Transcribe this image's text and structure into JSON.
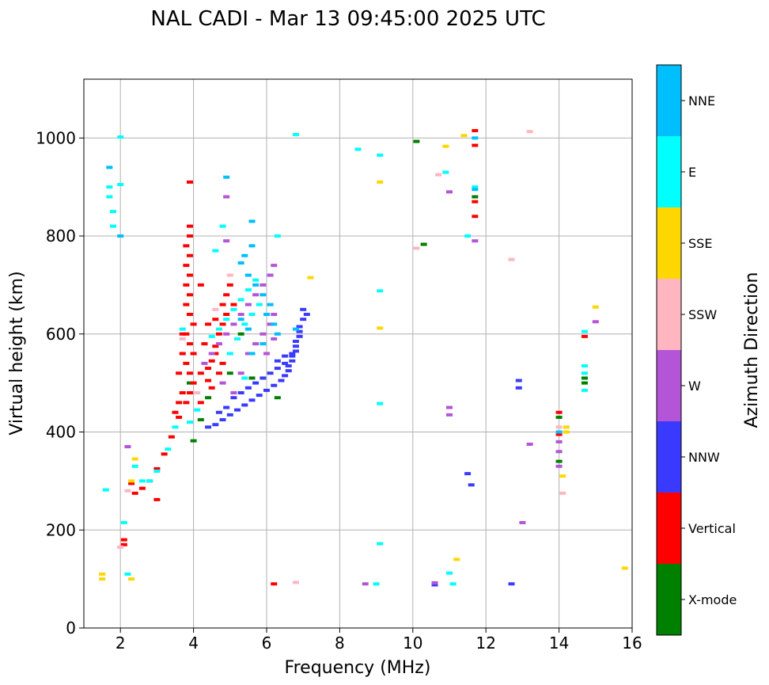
{
  "chart_data": {
    "type": "scatter",
    "title": "NAL CADI - Mar 13 09:45:00 2025 UTC",
    "xlabel": "Frequency (MHz)",
    "ylabel": "Virtual height (km)",
    "xlim": [
      1.0,
      16.0
    ],
    "ylim": [
      0,
      1120
    ],
    "xticks": [
      2,
      4,
      6,
      8,
      10,
      12,
      14,
      16
    ],
    "yticks": [
      0,
      200,
      400,
      600,
      800,
      1000
    ],
    "grid": true,
    "colorbar": {
      "title": "Azimuth Direction",
      "categories": [
        "X-mode",
        "Vertical",
        "NNW",
        "W",
        "SSW",
        "SSE",
        "E",
        "NNE"
      ],
      "colors": [
        "#008000",
        "#ff0000",
        "#3a3aff",
        "#b455d8",
        "#ffb6c1",
        "#ffd700",
        "#00ffff",
        "#00bfff"
      ]
    },
    "series": [
      {
        "name": "X-mode",
        "points": [
          [
            10.1,
            993
          ],
          [
            10.3,
            783
          ],
          [
            11.7,
            880
          ],
          [
            14.0,
            430
          ],
          [
            14.0,
            340
          ],
          [
            14.7,
            510
          ],
          [
            14.7,
            500
          ],
          [
            4.2,
            425
          ],
          [
            4.4,
            470
          ],
          [
            5.0,
            520
          ],
          [
            5.6,
            510
          ],
          [
            6.3,
            470
          ],
          [
            4.0,
            382
          ],
          [
            5.3,
            600
          ],
          [
            3.9,
            500
          ]
        ]
      },
      {
        "name": "Vertical",
        "points": [
          [
            2.1,
            180
          ],
          [
            2.1,
            170
          ],
          [
            2.4,
            275
          ],
          [
            2.6,
            285
          ],
          [
            2.8,
            300
          ],
          [
            3.0,
            325
          ],
          [
            3.2,
            355
          ],
          [
            3.4,
            390
          ],
          [
            3.6,
            430
          ],
          [
            3.8,
            460
          ],
          [
            3.9,
            480
          ],
          [
            4.0,
            500
          ],
          [
            3.9,
            520
          ],
          [
            3.8,
            540
          ],
          [
            4.0,
            560
          ],
          [
            3.9,
            580
          ],
          [
            3.8,
            600
          ],
          [
            4.0,
            620
          ],
          [
            3.9,
            640
          ],
          [
            3.8,
            660
          ],
          [
            3.9,
            680
          ],
          [
            3.8,
            700
          ],
          [
            3.9,
            720
          ],
          [
            3.8,
            740
          ],
          [
            3.9,
            760
          ],
          [
            3.8,
            780
          ],
          [
            3.9,
            800
          ],
          [
            3.9,
            820
          ],
          [
            3.9,
            910
          ],
          [
            4.2,
            520
          ],
          [
            4.4,
            530
          ],
          [
            4.5,
            545
          ],
          [
            4.6,
            560
          ],
          [
            4.4,
            505
          ],
          [
            4.5,
            490
          ],
          [
            4.6,
            575
          ],
          [
            4.7,
            600
          ],
          [
            4.8,
            620
          ],
          [
            4.9,
            640
          ],
          [
            4.8,
            660
          ],
          [
            4.9,
            680
          ],
          [
            5.0,
            700
          ],
          [
            4.7,
            520
          ],
          [
            4.8,
            540
          ],
          [
            3.6,
            460
          ],
          [
            3.5,
            440
          ],
          [
            3.7,
            480
          ],
          [
            3.6,
            520
          ],
          [
            3.7,
            560
          ],
          [
            3.7,
            600
          ],
          [
            4.2,
            460
          ],
          [
            4.4,
            620
          ],
          [
            6.2,
            90
          ],
          [
            11.7,
            1015
          ],
          [
            11.7,
            985
          ],
          [
            11.7,
            870
          ],
          [
            11.7,
            840
          ],
          [
            14.0,
            440
          ],
          [
            14.0,
            395
          ],
          [
            14.7,
            595
          ],
          [
            3.0,
            262
          ],
          [
            2.3,
            295
          ],
          [
            4.3,
            580
          ],
          [
            4.6,
            630
          ],
          [
            5.1,
            660
          ],
          [
            4.2,
            700
          ]
        ]
      },
      {
        "name": "NNW",
        "points": [
          [
            4.4,
            410
          ],
          [
            4.6,
            415
          ],
          [
            4.8,
            425
          ],
          [
            5.0,
            435
          ],
          [
            5.2,
            445
          ],
          [
            5.4,
            455
          ],
          [
            5.6,
            465
          ],
          [
            5.8,
            475
          ],
          [
            6.0,
            485
          ],
          [
            6.2,
            495
          ],
          [
            6.4,
            505
          ],
          [
            6.5,
            515
          ],
          [
            6.6,
            525
          ],
          [
            6.6,
            535
          ],
          [
            6.7,
            545
          ],
          [
            6.7,
            555
          ],
          [
            6.8,
            565
          ],
          [
            6.8,
            575
          ],
          [
            6.8,
            585
          ],
          [
            6.9,
            595
          ],
          [
            6.9,
            605
          ],
          [
            6.9,
            615
          ],
          [
            7.0,
            630
          ],
          [
            7.0,
            650
          ],
          [
            7.1,
            640
          ],
          [
            5.5,
            490
          ],
          [
            5.7,
            500
          ],
          [
            5.9,
            510
          ],
          [
            6.1,
            520
          ],
          [
            6.3,
            530
          ],
          [
            6.5,
            540
          ],
          [
            6.7,
            560
          ],
          [
            5.3,
            480
          ],
          [
            5.1,
            470
          ],
          [
            4.7,
            440
          ],
          [
            4.9,
            450
          ],
          [
            12.9,
            505
          ],
          [
            12.9,
            490
          ],
          [
            12.7,
            90
          ],
          [
            11.5,
            315
          ],
          [
            11.6,
            292
          ],
          [
            10.6,
            92
          ],
          [
            10.6,
            88
          ],
          [
            6.5,
            555
          ],
          [
            6.3,
            545
          ]
        ]
      },
      {
        "name": "W",
        "points": [
          [
            2.2,
            370
          ],
          [
            4.3,
            540
          ],
          [
            4.5,
            560
          ],
          [
            4.7,
            580
          ],
          [
            4.9,
            600
          ],
          [
            5.1,
            620
          ],
          [
            5.3,
            640
          ],
          [
            5.5,
            660
          ],
          [
            5.7,
            680
          ],
          [
            5.9,
            700
          ],
          [
            6.1,
            720
          ],
          [
            6.2,
            740
          ],
          [
            5.1,
            480
          ],
          [
            5.3,
            520
          ],
          [
            5.5,
            560
          ],
          [
            5.7,
            580
          ],
          [
            5.9,
            600
          ],
          [
            6.1,
            620
          ],
          [
            6.2,
            640
          ],
          [
            4.9,
            790
          ],
          [
            4.9,
            880
          ],
          [
            11.0,
            890
          ],
          [
            11.0,
            450
          ],
          [
            11.0,
            435
          ],
          [
            13.2,
            375
          ],
          [
            13.0,
            215
          ],
          [
            14.0,
            380
          ],
          [
            14.0,
            360
          ],
          [
            14.0,
            330
          ],
          [
            8.7,
            90
          ],
          [
            10.6,
            92
          ],
          [
            11.7,
            790
          ],
          [
            15.0,
            625
          ],
          [
            6.2,
            590
          ],
          [
            6.0,
            560
          ],
          [
            4.8,
            500
          ]
        ]
      },
      {
        "name": "SSW",
        "points": [
          [
            2.0,
            165
          ],
          [
            10.1,
            775
          ],
          [
            10.7,
            925
          ],
          [
            12.7,
            752
          ],
          [
            13.2,
            1013
          ],
          [
            14.1,
            275
          ],
          [
            6.8,
            93
          ],
          [
            2.2,
            280
          ],
          [
            14.0,
            410
          ],
          [
            14.0,
            400
          ],
          [
            4.6,
            650
          ],
          [
            5.0,
            720
          ],
          [
            3.7,
            590
          ],
          [
            4.1,
            480
          ]
        ]
      },
      {
        "name": "SSE",
        "points": [
          [
            1.5,
            110
          ],
          [
            1.5,
            100
          ],
          [
            2.3,
            300
          ],
          [
            2.4,
            345
          ],
          [
            2.3,
            100
          ],
          [
            9.1,
            910
          ],
          [
            9.1,
            612
          ],
          [
            11.4,
            1005
          ],
          [
            11.2,
            140
          ],
          [
            14.1,
            310
          ],
          [
            14.2,
            410
          ],
          [
            14.2,
            400
          ],
          [
            15.0,
            655
          ],
          [
            15.8,
            122
          ],
          [
            7.2,
            715
          ],
          [
            10.9,
            983
          ]
        ]
      },
      {
        "name": "E",
        "points": [
          [
            1.6,
            282
          ],
          [
            2.1,
            215
          ],
          [
            2.4,
            330
          ],
          [
            2.6,
            300
          ],
          [
            2.8,
            300
          ],
          [
            3.0,
            320
          ],
          [
            3.3,
            365
          ],
          [
            3.5,
            410
          ],
          [
            3.9,
            420
          ],
          [
            4.1,
            445
          ],
          [
            4.5,
            595
          ],
          [
            4.7,
            610
          ],
          [
            4.9,
            630
          ],
          [
            5.1,
            650
          ],
          [
            5.3,
            670
          ],
          [
            5.5,
            690
          ],
          [
            5.7,
            710
          ],
          [
            5.2,
            590
          ],
          [
            5.4,
            620
          ],
          [
            5.6,
            640
          ],
          [
            5.8,
            660
          ],
          [
            1.7,
            900
          ],
          [
            1.7,
            880
          ],
          [
            1.8,
            850
          ],
          [
            1.8,
            820
          ],
          [
            2.0,
            1002
          ],
          [
            2.0,
            905
          ],
          [
            9.1,
            965
          ],
          [
            9.1,
            688
          ],
          [
            9.1,
            458
          ],
          [
            9.1,
            172
          ],
          [
            9.0,
            90
          ],
          [
            10.9,
            930
          ],
          [
            11.1,
            90
          ],
          [
            11.0,
            112
          ],
          [
            11.7,
            900
          ],
          [
            11.5,
            800
          ],
          [
            14.7,
            605
          ],
          [
            14.7,
            535
          ],
          [
            14.7,
            520
          ],
          [
            14.7,
            485
          ],
          [
            6.8,
            1007
          ],
          [
            8.5,
            977
          ],
          [
            4.8,
            820
          ],
          [
            3.7,
            610
          ],
          [
            4.6,
            770
          ],
          [
            6.3,
            800
          ],
          [
            5.4,
            510
          ],
          [
            5.0,
            560
          ],
          [
            2.2,
            110
          ]
        ]
      },
      {
        "name": "NNE",
        "points": [
          [
            1.7,
            940
          ],
          [
            2.0,
            800
          ],
          [
            5.6,
            780
          ],
          [
            5.4,
            760
          ],
          [
            5.3,
            745
          ],
          [
            5.5,
            720
          ],
          [
            5.7,
            700
          ],
          [
            5.9,
            680
          ],
          [
            6.1,
            660
          ],
          [
            6.0,
            640
          ],
          [
            6.2,
            620
          ],
          [
            6.3,
            600
          ],
          [
            5.9,
            580
          ],
          [
            5.6,
            560
          ],
          [
            5.5,
            610
          ],
          [
            5.3,
            630
          ],
          [
            11.7,
            1000
          ],
          [
            11.7,
            895
          ],
          [
            14.0,
            400
          ],
          [
            4.9,
            920
          ],
          [
            5.6,
            830
          ],
          [
            6.8,
            610
          ]
        ]
      }
    ]
  }
}
